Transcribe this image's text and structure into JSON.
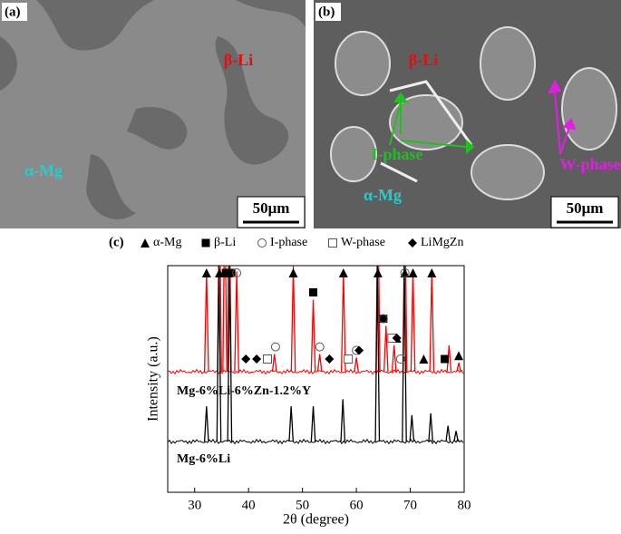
{
  "panels": [
    {
      "label": "(a)",
      "scale_bar": "50μm",
      "annotations": [
        {
          "text": "β-Li",
          "color": "#e01010"
        },
        {
          "text": "α-Mg",
          "color": "#20d0d0"
        }
      ]
    },
    {
      "label": "(b)",
      "scale_bar": "50μm",
      "annotations": [
        {
          "text": "β-Li",
          "color": "#e01010"
        },
        {
          "text": "I-phase",
          "color": "#20c020"
        },
        {
          "text": "W-phase",
          "color": "#e020e0"
        },
        {
          "text": "α-Mg",
          "color": "#20d0d0"
        }
      ]
    }
  ],
  "chart_data": {
    "type": "xrd",
    "label": "(c)",
    "xlabel": "2θ (degree)",
    "ylabel": "Intensity (a.u.)",
    "xlim": [
      25,
      80
    ],
    "xticks": [
      30,
      40,
      50,
      60,
      70,
      80
    ],
    "series": [
      {
        "name": "Mg-6%Li-6%Zn-1.2%Y",
        "color": "#ff0000",
        "peaks": [
          32.2,
          34.6,
          35.6,
          36.4,
          37.8,
          44.8,
          48.3,
          52,
          53.2,
          57.6,
          60,
          64,
          65.5,
          67,
          69,
          70.5,
          74,
          77.2,
          79
        ],
        "values": [
          57,
          100,
          100,
          100,
          57,
          10,
          60,
          41,
          10,
          57,
          8,
          100,
          26,
          15,
          100,
          57,
          57,
          15,
          5
        ]
      },
      {
        "name": "Mg-6%Li",
        "color": "#000000",
        "peaks": [
          32.2,
          34.5,
          36.5,
          47.9,
          52,
          57.5,
          63.9,
          68.9,
          70.3,
          73.8,
          77,
          78.5
        ],
        "values": [
          20,
          100,
          100,
          20,
          20,
          24,
          100,
          100,
          15,
          16,
          9,
          6
        ]
      }
    ],
    "phases": [
      {
        "name": "α-Mg",
        "marker": "triangle",
        "positions": [
          32.2,
          34.6,
          36.2,
          48.3,
          57.6,
          64,
          67.5,
          69,
          70.5,
          72.5,
          74,
          79
        ]
      },
      {
        "name": "β-Li",
        "marker": "square",
        "positions": [
          35.8,
          36.8,
          52,
          65,
          76.4
        ]
      },
      {
        "name": "I-phase",
        "marker": "circle",
        "positions": [
          37.8,
          45,
          53.2,
          60,
          65,
          68.2,
          69
        ]
      },
      {
        "name": "W-phase",
        "marker": "open-square",
        "positions": [
          43.5,
          58.5,
          66.6
        ]
      },
      {
        "name": "LiMgZn",
        "marker": "diamond",
        "positions": [
          39.5,
          41.5,
          55,
          60.5,
          67.5
        ]
      }
    ]
  }
}
